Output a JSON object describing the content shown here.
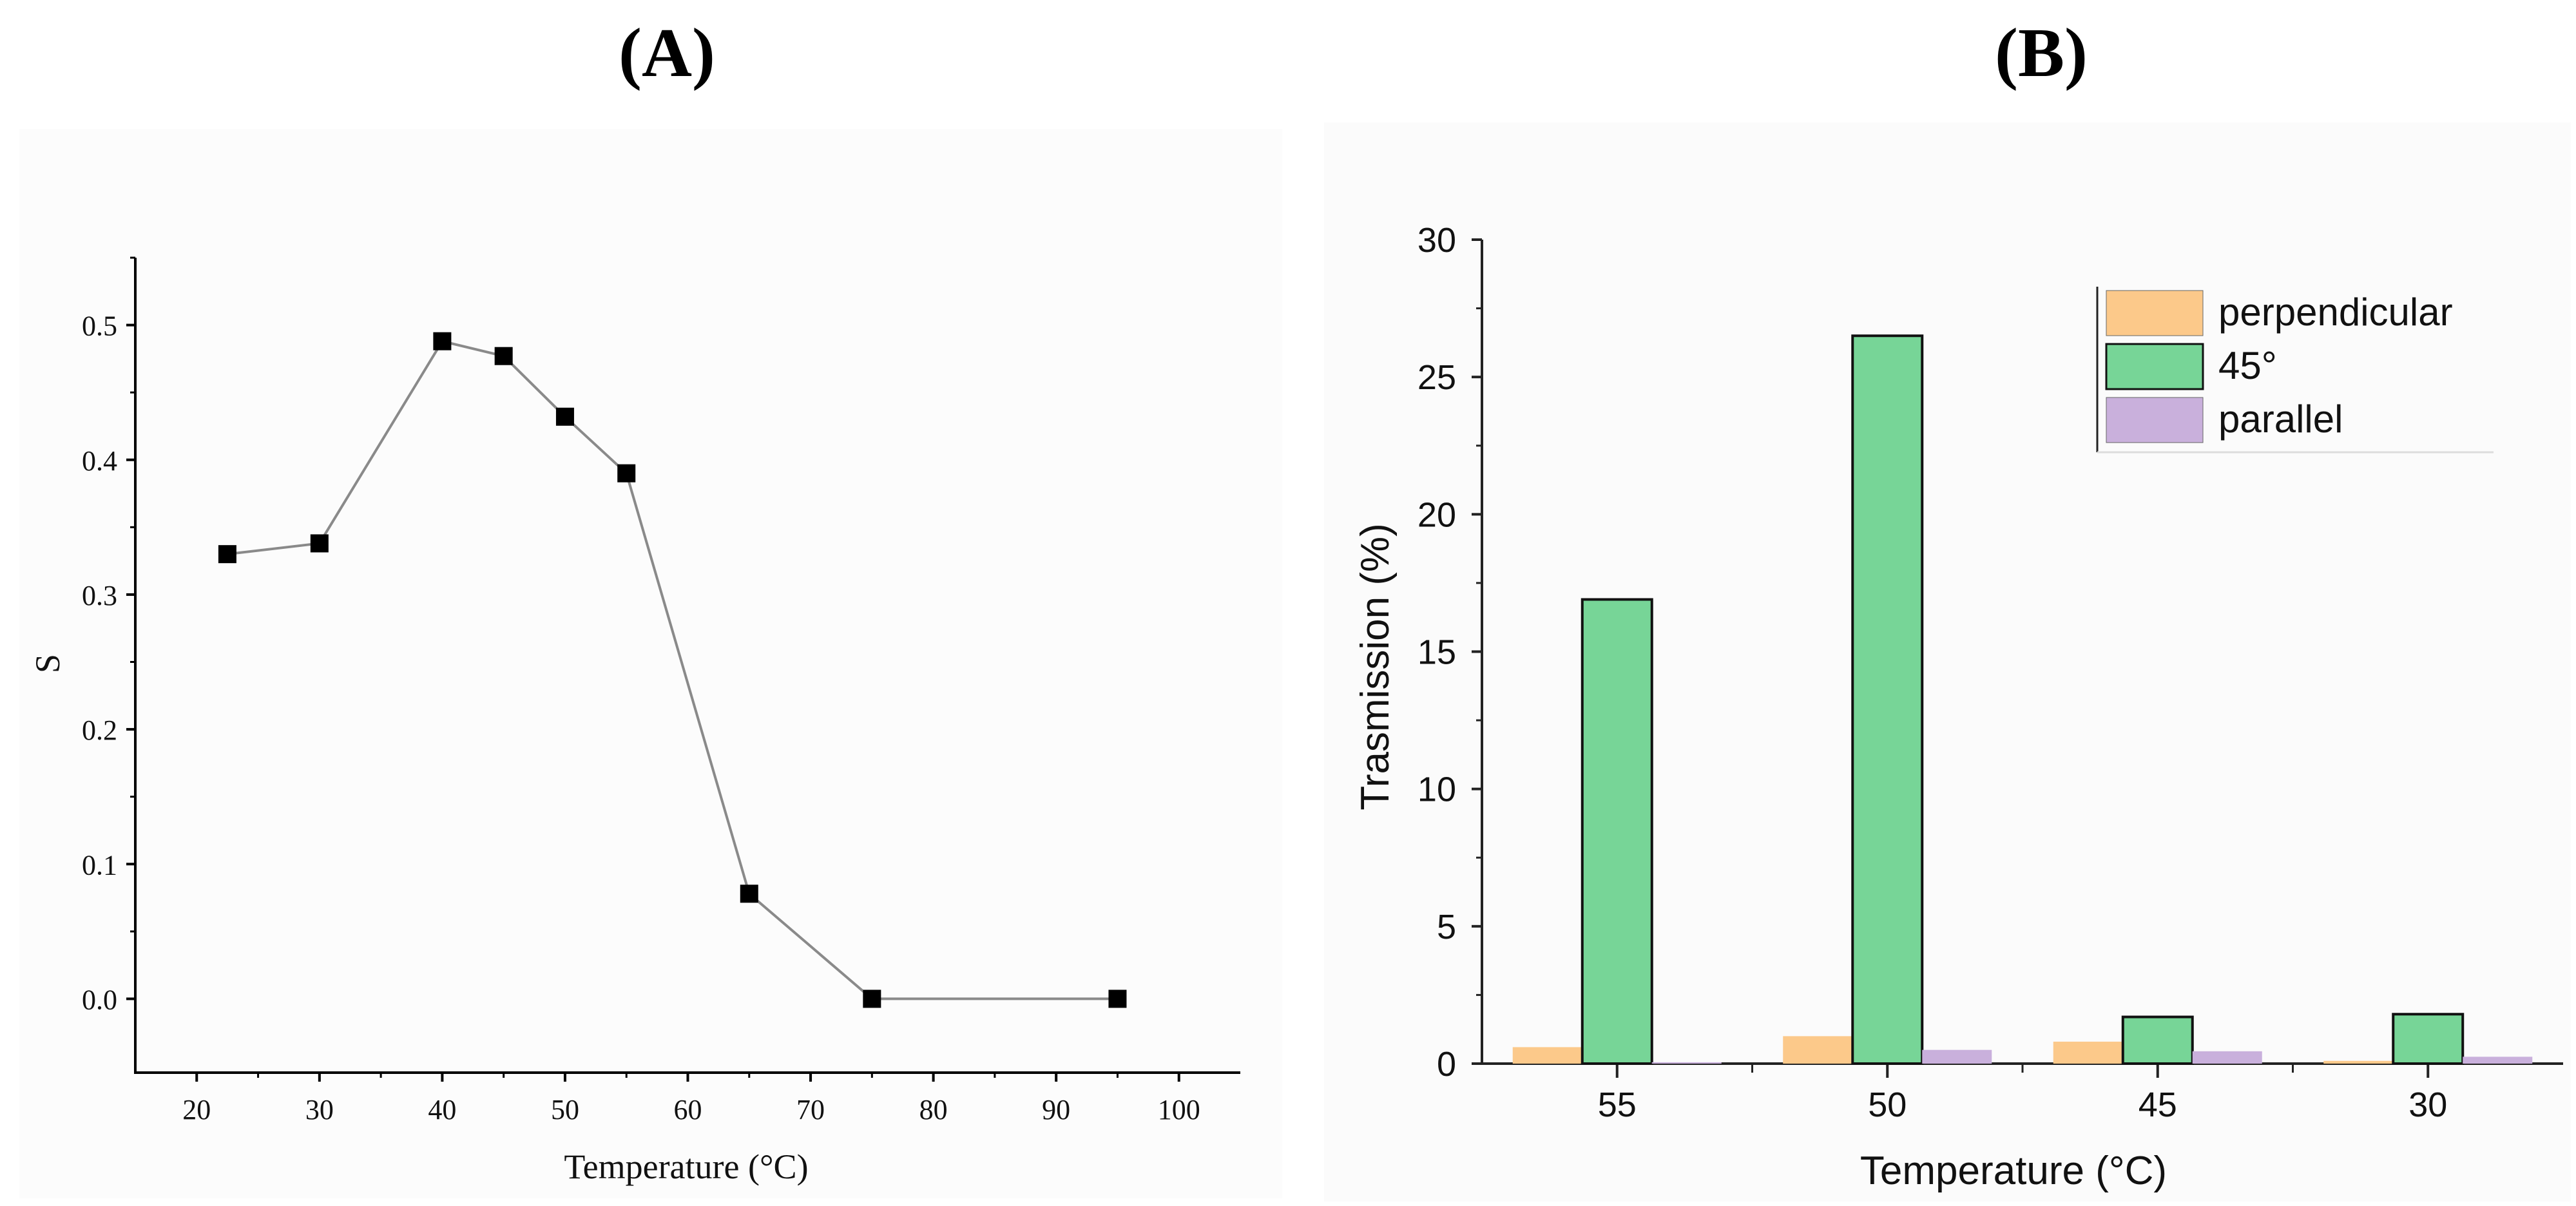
{
  "panels": {
    "a_label": "(A)",
    "b_label": "(B)"
  },
  "chart_data": [
    {
      "id": "A",
      "type": "line",
      "title": "",
      "xlabel": "Temperature (°C)",
      "ylabel": "S",
      "xlim": [
        15,
        105
      ],
      "ylim": [
        -0.05,
        0.55
      ],
      "xticks": [
        20,
        30,
        40,
        50,
        60,
        70,
        80,
        90,
        100
      ],
      "yticks": [
        0.0,
        0.1,
        0.2,
        0.3,
        0.4,
        0.5
      ],
      "ytick_labels": [
        "0.0",
        "0.1",
        "0.2",
        "0.3",
        "0.4",
        "0.5"
      ],
      "grid": false,
      "series": [
        {
          "name": "S",
          "marker": "square",
          "color": "#000000",
          "line_color": "#8a8a8a",
          "x": [
            22.5,
            30,
            40,
            45,
            50,
            55,
            65,
            75,
            95
          ],
          "y": [
            0.33,
            0.338,
            0.488,
            0.477,
            0.432,
            0.39,
            0.078,
            0.0,
            0.0
          ]
        }
      ]
    },
    {
      "id": "B",
      "type": "bar",
      "title": "",
      "xlabel": "Temperature (°C)",
      "ylabel": "Trasmission (%)",
      "ylim": [
        0,
        30
      ],
      "yticks": [
        0,
        5,
        10,
        15,
        20,
        25,
        30
      ],
      "categories": [
        "55",
        "50",
        "45",
        "30"
      ],
      "grid": false,
      "legend_position": "top-right",
      "series": [
        {
          "name": "perpendicular",
          "color": "#fcc98a",
          "values": [
            0.6,
            1.0,
            0.8,
            0.1
          ]
        },
        {
          "name": "45°",
          "color": "#77d597",
          "values": [
            16.9,
            26.5,
            1.7,
            1.8
          ]
        },
        {
          "name": "parallel",
          "color": "#c9b0dc",
          "values": [
            0.05,
            0.5,
            0.45,
            0.25
          ]
        }
      ]
    }
  ]
}
